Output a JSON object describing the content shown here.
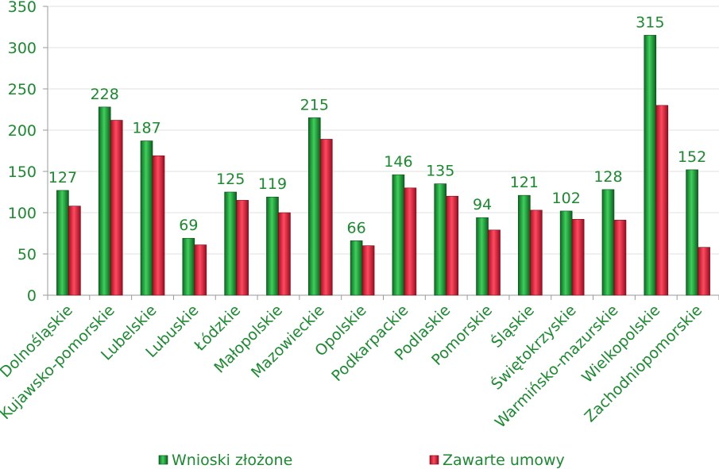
{
  "chart_data": {
    "type": "bar",
    "categories": [
      "Dolnośląskie",
      "Kujawsko-pomorskie",
      "Lubelskie",
      "Lubuskie",
      "Łódzkie",
      "Małopolskie",
      "Mazowieckie",
      "Opolskie",
      "Podkarpackie",
      "Podlaskie",
      "Pomorskie",
      "Śląskie",
      "Świętokrzyskie",
      "Warmińsko-mazurskie",
      "Wielkopolskie",
      "Zachodniopomorskie"
    ],
    "series": [
      {
        "name": "Wnioski złożone",
        "color": "#1e9b3a",
        "values": [
          127,
          228,
          187,
          69,
          125,
          119,
          215,
          66,
          146,
          135,
          94,
          121,
          102,
          128,
          315,
          152
        ],
        "labels": [
          "127",
          "228",
          "187",
          "69",
          "125",
          "119",
          "215",
          "66",
          "146",
          "135",
          "94",
          "121",
          "102",
          "128",
          "315",
          "152"
        ]
      },
      {
        "name": "Zawarte umowy",
        "color": "#e3173a",
        "values": [
          108,
          212,
          169,
          61,
          115,
          100,
          189,
          60,
          130,
          120,
          79,
          103,
          92,
          91,
          230,
          58
        ]
      }
    ],
    "yticks": [
      "0",
      "50",
      "100",
      "150",
      "200",
      "250",
      "300",
      "350"
    ],
    "ylim": [
      0,
      350
    ],
    "grid": "horizontal",
    "legend": "bottom"
  }
}
